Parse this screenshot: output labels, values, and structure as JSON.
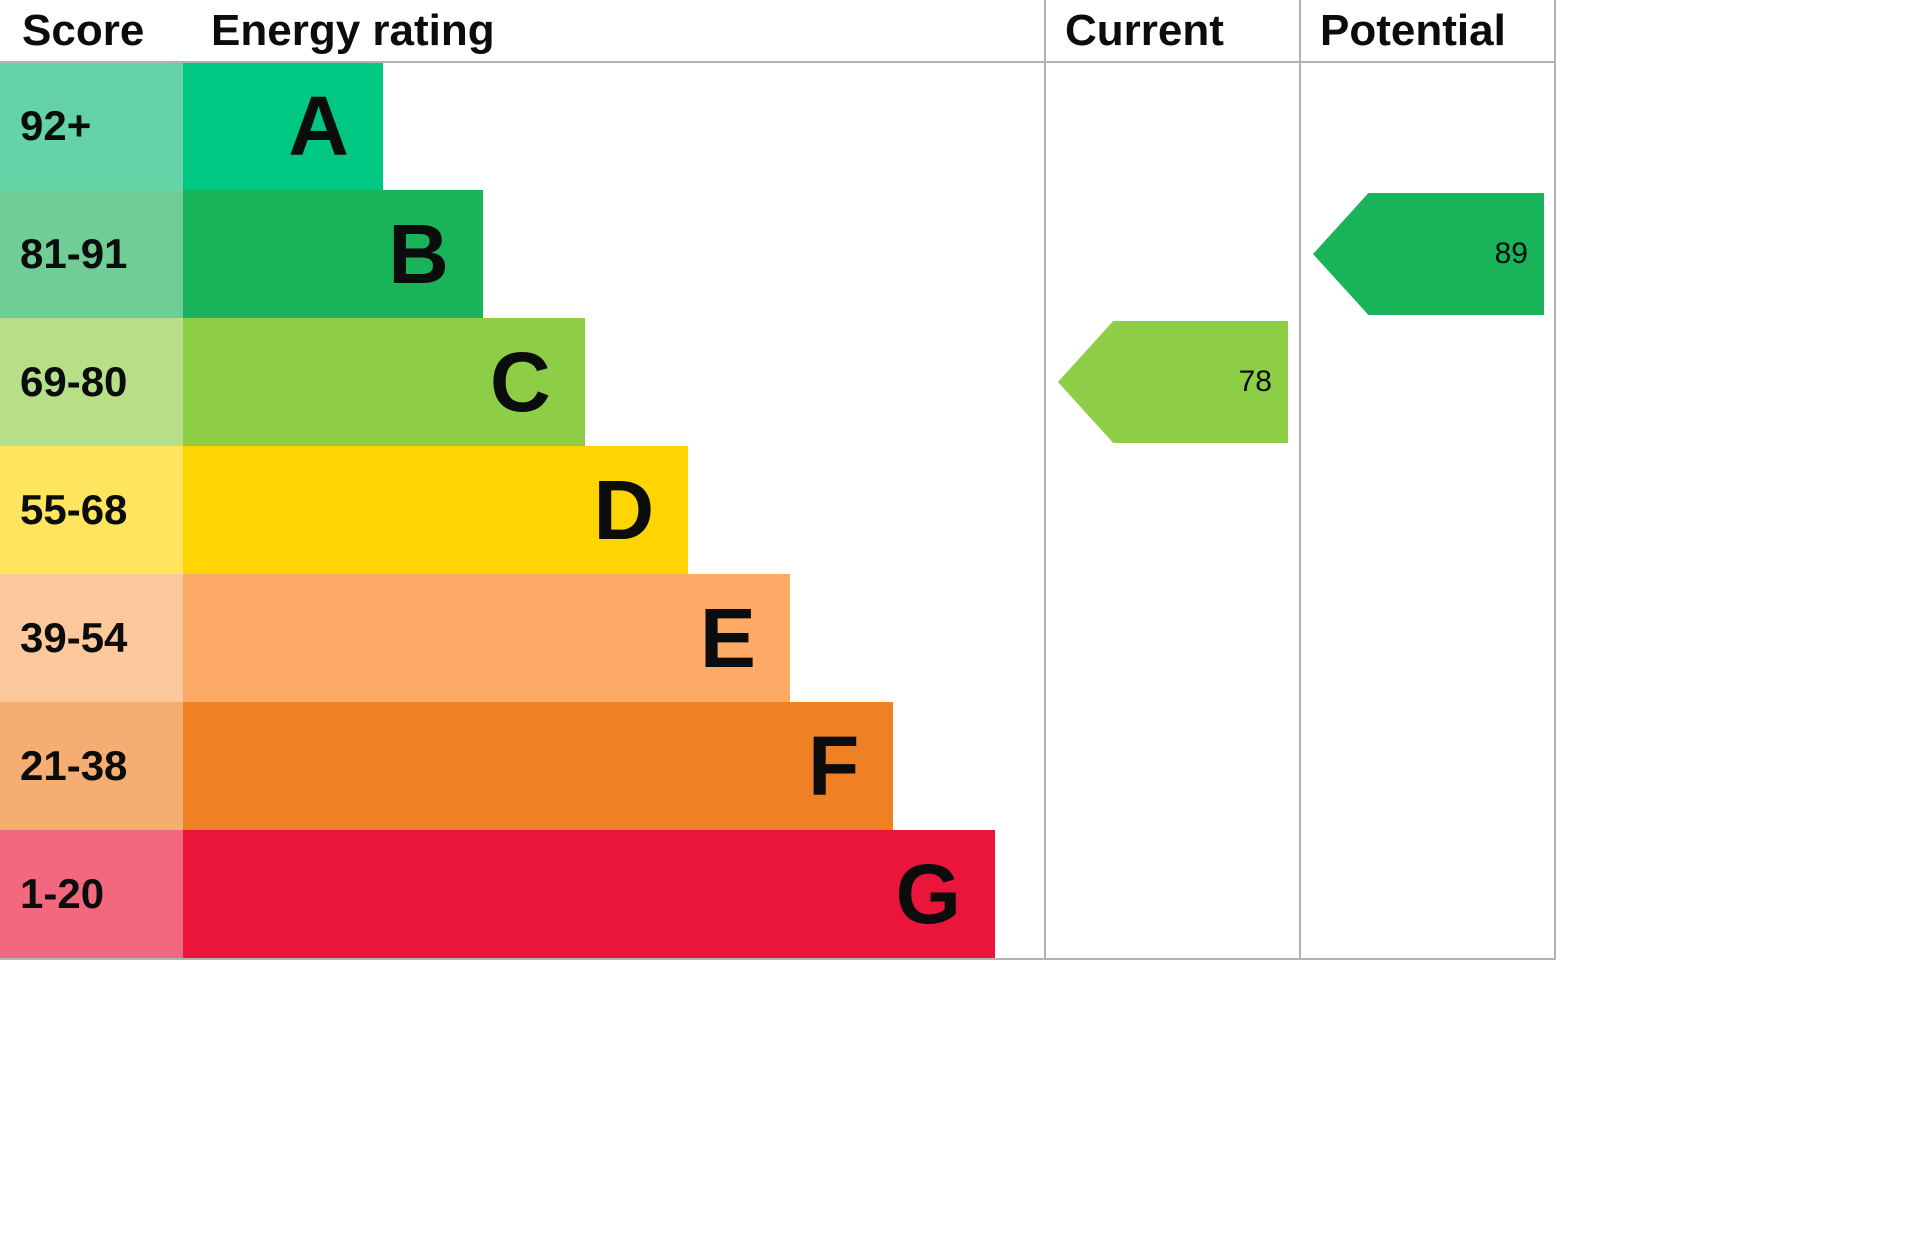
{
  "chart_data": {
    "type": "bar",
    "title": "Energy rating",
    "headers": {
      "score": "Score",
      "rating": "Energy rating",
      "current": "Current",
      "potential": "Potential"
    },
    "bands": [
      {
        "letter": "A",
        "score": "92+",
        "color": "#00c781",
        "tint": "#65d3a8",
        "width": "23.2%"
      },
      {
        "letter": "B",
        "score": "81-91",
        "color": "#19b459",
        "tint": "#6fcd95",
        "width": "34.8%"
      },
      {
        "letter": "C",
        "score": "69-80",
        "color": "#8dce46",
        "tint": "#b6df88",
        "width": "46.6%"
      },
      {
        "letter": "D",
        "score": "55-68",
        "color": "#ffd500",
        "tint": "#ffe45e",
        "width": "58.6%"
      },
      {
        "letter": "E",
        "score": "39-54",
        "color": "#fcaa65",
        "tint": "#fdc99c",
        "width": "70.4%"
      },
      {
        "letter": "F",
        "score": "21-38",
        "color": "#ef8023",
        "tint": "#f5ad71",
        "width": "82.4%"
      },
      {
        "letter": "G",
        "score": "1-20",
        "color": "#e9153b",
        "tint": "#f1687f",
        "width": "94.2%"
      }
    ],
    "current": {
      "value": 78,
      "band": "C",
      "color": "#8dce46"
    },
    "potential": {
      "value": 89,
      "band": "B",
      "color": "#19b459"
    },
    "border_color": "#b1b4b6",
    "text_color": "#0b0c0c"
  }
}
